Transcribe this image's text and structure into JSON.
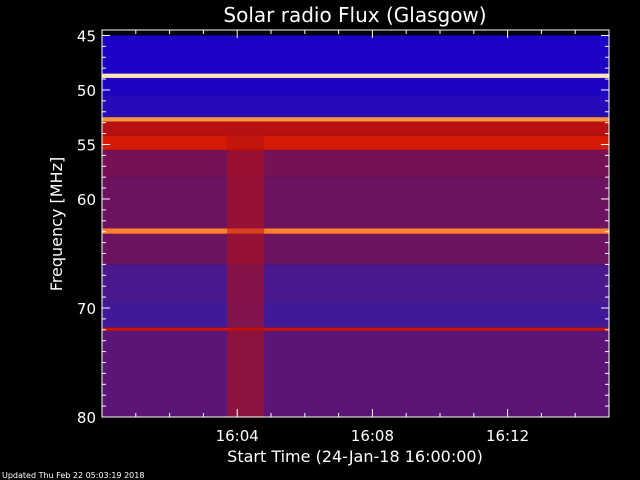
{
  "chart_data": {
    "type": "heatmap",
    "title": "Solar radio Flux (Glasgow)",
    "xlabel": "Start Time (24-Jan-18 16:00:00)",
    "ylabel": "Frequency [MHz]",
    "footer": "Updated Thu Feb 22 05:03:19 2018",
    "x_unit": "minutes after 16:00:00",
    "xlim": [
      0,
      15
    ],
    "ylim": [
      80,
      44.5
    ],
    "x_ticks": [
      {
        "value": 4,
        "label": "16:04"
      },
      {
        "value": 8,
        "label": "16:08"
      },
      {
        "value": 12,
        "label": "16:12"
      }
    ],
    "x_minor_ticks": [
      1,
      2,
      3,
      5,
      6,
      7,
      9,
      10,
      11,
      13,
      14
    ],
    "y_ticks": [
      {
        "value": 45,
        "label": "45"
      },
      {
        "value": 50,
        "label": "50"
      },
      {
        "value": 55,
        "label": "55"
      },
      {
        "value": 60,
        "label": "60"
      },
      {
        "value": 70,
        "label": "70"
      },
      {
        "value": 80,
        "label": "80"
      }
    ],
    "y_minor_ticks": [
      46,
      47,
      48,
      49,
      51,
      52,
      53,
      54,
      56,
      57,
      58,
      59,
      61,
      62,
      63,
      64,
      65,
      66,
      67,
      68,
      69,
      71,
      72,
      73,
      74,
      75,
      76,
      77,
      78,
      79
    ],
    "colormap": [
      "#000000",
      "#1a00c8",
      "#3a1aa0",
      "#7a1050",
      "#c01008",
      "#ff3000",
      "#ff9a40",
      "#fff0d0"
    ],
    "frequency_bands": [
      {
        "from": 44.5,
        "to": 45.0,
        "level": 0.0
      },
      {
        "from": 45.0,
        "to": 48.5,
        "level": 0.15
      },
      {
        "from": 48.5,
        "to": 48.9,
        "level": 0.98
      },
      {
        "from": 48.9,
        "to": 50.5,
        "level": 0.16
      },
      {
        "from": 50.5,
        "to": 52.5,
        "level": 0.2
      },
      {
        "from": 52.5,
        "to": 52.9,
        "level": 0.85
      },
      {
        "from": 52.9,
        "to": 54.2,
        "level": 0.55
      },
      {
        "from": 54.2,
        "to": 55.5,
        "level": 0.62
      },
      {
        "from": 55.5,
        "to": 58.0,
        "level": 0.42
      },
      {
        "from": 58.0,
        "to": 62.7,
        "level": 0.4
      },
      {
        "from": 62.7,
        "to": 63.2,
        "level": 0.82
      },
      {
        "from": 63.2,
        "to": 66.0,
        "level": 0.4
      },
      {
        "from": 66.0,
        "to": 69.5,
        "level": 0.32
      },
      {
        "from": 69.5,
        "to": 71.8,
        "level": 0.3
      },
      {
        "from": 71.8,
        "to": 72.1,
        "level": 0.6
      },
      {
        "from": 72.1,
        "to": 80.0,
        "level": 0.36
      }
    ],
    "burst": {
      "from": 3.7,
      "to": 4.8,
      "level": 0.55
    }
  }
}
